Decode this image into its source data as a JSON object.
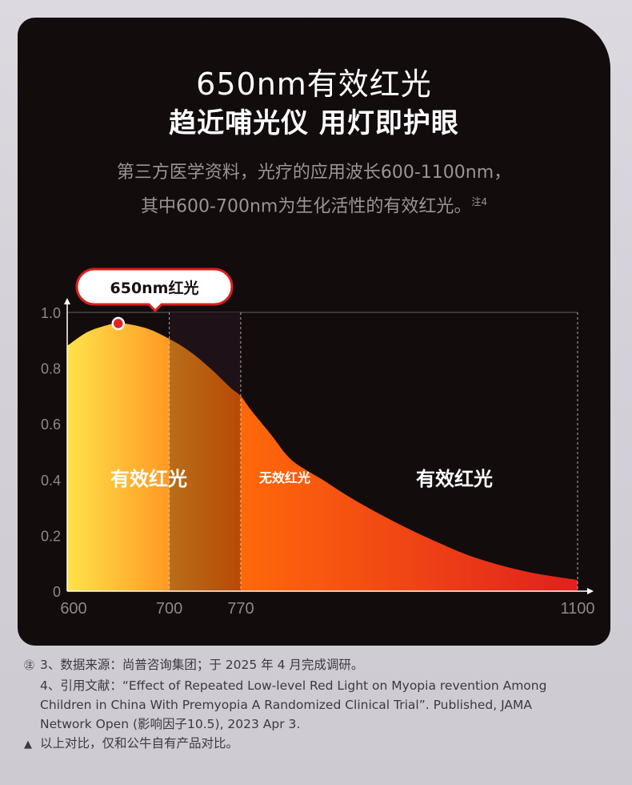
{
  "header": {
    "title_line1": "650nm有效红光",
    "title_line2": "趋近哺光仪 用灯即护眼",
    "desc_line1": "第三方医学资料，光疗的应用波长600-1100nm，",
    "desc_line2": "其中600-700nm为生化活性的有效红光。",
    "desc_note": "注4"
  },
  "chart_data": {
    "type": "area",
    "x_ticks": [
      "600",
      "700",
      "770",
      "1100"
    ],
    "y_ticks": [
      "0",
      "0.2",
      "0.4",
      "0.6",
      "0.8",
      "1.0"
    ],
    "xlim": [
      600,
      1100
    ],
    "ylim": [
      0,
      1.0
    ],
    "grid": true,
    "x": [
      600,
      620,
      640,
      650,
      660,
      680,
      700,
      720,
      740,
      760,
      770,
      780,
      800,
      820,
      850,
      880,
      920,
      960,
      1000,
      1050,
      1100
    ],
    "values": [
      0.88,
      0.93,
      0.955,
      0.96,
      0.958,
      0.94,
      0.905,
      0.86,
      0.8,
      0.73,
      0.7,
      0.65,
      0.56,
      0.47,
      0.4,
      0.33,
      0.25,
      0.18,
      0.12,
      0.07,
      0.04
    ],
    "highlight_point": {
      "x": 650,
      "y": 0.96,
      "label": "650nm红光"
    },
    "regions": [
      {
        "label": "有效红光",
        "from": 600,
        "to": 700
      },
      {
        "label": "无效红光",
        "from": 700,
        "to": 770
      },
      {
        "label": "有效红光",
        "from": 770,
        "to": 1100
      }
    ],
    "colors": {
      "grad_start": "#ffe24a",
      "grad_mid": "#ff6a0a",
      "grad_end": "#e0201e",
      "band": "#2a1a22",
      "marker": "#e02424"
    }
  },
  "notes": {
    "note3": "3、数据来源：尚普咨询集团；于 2025 年 4 月完成调研。",
    "note4_l1": "4、引用文献：“Effect of Repeated Low-level Red Light on Myopia revention Among",
    "note4_l2": "Children in China With Premyopia A Randomized Clinical Trial”. Published, JAMA",
    "note4_l3": "Network Open (影响因子10.5), 2023 Apr 3.",
    "warning": "以上对比，仅和公牛自有产品对比。"
  }
}
